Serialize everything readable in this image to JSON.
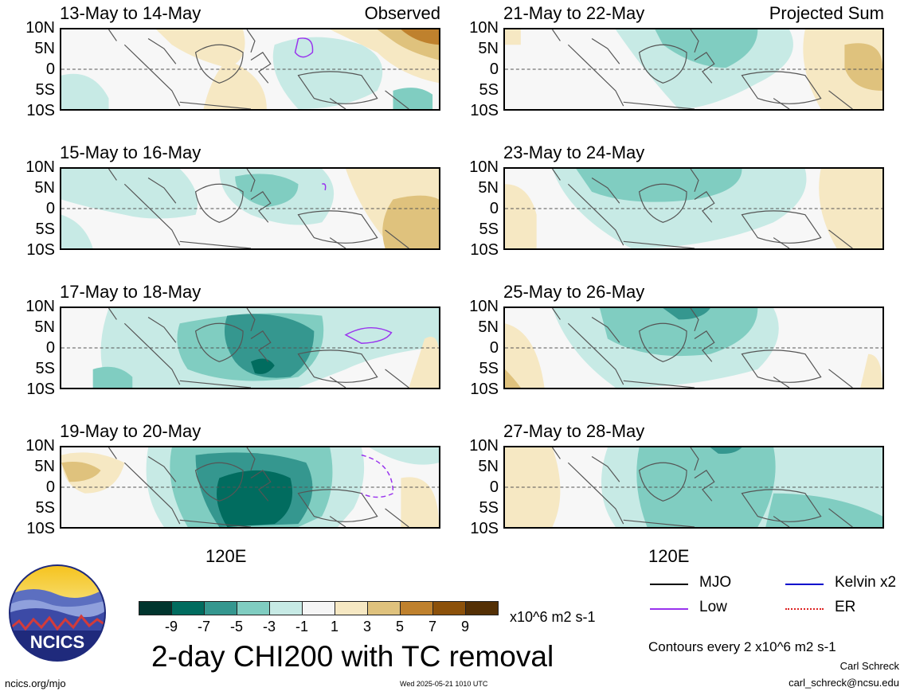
{
  "panels": [
    {
      "title": "13-May to 14-May",
      "tag": "Observed"
    },
    {
      "title": "15-May to 16-May",
      "tag": ""
    },
    {
      "title": "17-May to 18-May",
      "tag": ""
    },
    {
      "title": "19-May to 20-May",
      "tag": ""
    },
    {
      "title": "21-May to 22-May",
      "tag": "Projected Sum"
    },
    {
      "title": "23-May to 24-May",
      "tag": ""
    },
    {
      "title": "25-May to 26-May",
      "tag": ""
    },
    {
      "title": "27-May to 28-May",
      "tag": ""
    }
  ],
  "lat_labels": [
    "10N",
    "5N",
    "0",
    "5S",
    "10S"
  ],
  "lon_label": "120E",
  "colorbar": {
    "colors": [
      "#01352e",
      "#016c5f",
      "#35978f",
      "#80cdc1",
      "#c7eae5",
      "#f5f5f5",
      "#f6e8c3",
      "#dfc27d",
      "#bf812d",
      "#8c510a",
      "#543005"
    ],
    "ticks": [
      "-9",
      "-7",
      "-5",
      "-3",
      "-1",
      "1",
      "3",
      "5",
      "7",
      "9"
    ],
    "units": "x10^6 m2 s-1"
  },
  "title": "2-day CHI200 with TC removal",
  "legend": [
    {
      "label": "MJO",
      "color": "#000000"
    },
    {
      "label": "Kelvin x2",
      "color": "#0000cc"
    },
    {
      "label": "Low",
      "color": "#9933ee"
    },
    {
      "label": "ER",
      "color": "#dd2222"
    }
  ],
  "contour_note": "Contours every 2 x10^6 m2 s-1",
  "author": "Carl Schreck",
  "email": "carl_schreck@ncsu.edu",
  "url": "ncics.org/mjo",
  "timestamp": "Wed 2025-05-21 1010 UTC",
  "logo_text": "NCICS"
}
